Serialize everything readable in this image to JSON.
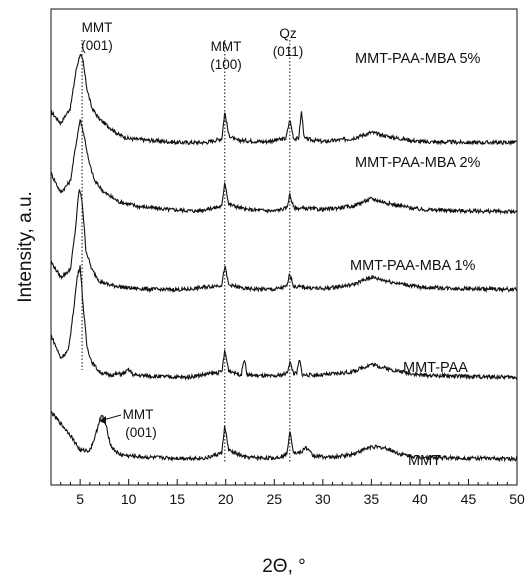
{
  "chart_data": {
    "type": "line",
    "xlabel": "2Θ, °",
    "ylabel": "Intensity, a.u.",
    "xlim": [
      2,
      50
    ],
    "xticks": [
      5,
      10,
      15,
      20,
      25,
      30,
      35,
      40,
      45,
      50
    ],
    "xtick_labels": [
      "5",
      "10",
      "15",
      "20",
      "25",
      "30",
      "35",
      "40",
      "45",
      "50"
    ],
    "y_ticks_shown": false,
    "grid": false,
    "reference_lines": [
      {
        "x": 5.2,
        "style": "dotted"
      },
      {
        "x": 19.9,
        "style": "dotted"
      },
      {
        "x": 26.6,
        "style": "dotted"
      }
    ],
    "annotations": [
      {
        "text": "MMT",
        "x": 6.0,
        "series": "MMT-PAA-MBA 5%"
      },
      {
        "text": "(001)",
        "x": 6.0,
        "series": "MMT-PAA-MBA 5%"
      },
      {
        "text": "MMT",
        "x": 19.9,
        "series": "MMT-PAA-MBA 5%"
      },
      {
        "text": "(100)",
        "x": 19.9,
        "series": "MMT-PAA-MBA 5%"
      },
      {
        "text": "Qz",
        "x": 26.6,
        "series": "MMT-PAA-MBA 5%"
      },
      {
        "text": "(011)",
        "x": 26.6,
        "series": "MMT-PAA-MBA 5%"
      },
      {
        "text": "MMT",
        "x": 9.5,
        "series": "MMT"
      },
      {
        "text": "(001)",
        "x": 9.5,
        "series": "MMT"
      }
    ],
    "series": [
      {
        "name": "MMT-PAA-MBA 5%",
        "baseline": 4.1,
        "x": [
          2,
          3,
          4,
          4.6,
          5.0,
          5.3,
          5.7,
          6.2,
          7,
          8,
          9,
          10,
          12,
          15,
          18,
          19.6,
          19.9,
          20.3,
          21,
          24,
          26.2,
          26.6,
          27.0,
          27.5,
          27.8,
          28.1,
          30,
          33,
          35,
          37,
          40,
          45,
          50
        ],
        "y": [
          0.45,
          0.3,
          0.5,
          1.0,
          1.2,
          1.1,
          0.75,
          0.5,
          0.35,
          0.25,
          0.15,
          0.1,
          0.08,
          0.05,
          0.05,
          0.1,
          0.45,
          0.15,
          0.08,
          0.06,
          0.1,
          0.35,
          0.1,
          0.1,
          0.45,
          0.1,
          0.06,
          0.1,
          0.18,
          0.12,
          0.06,
          0.05,
          0.05
        ]
      },
      {
        "name": "MMT-PAA-MBA 2%",
        "baseline": 3.2,
        "x": [
          2,
          3,
          4,
          4.6,
          5.0,
          5.4,
          5.9,
          6.5,
          7.5,
          9,
          11,
          14,
          17,
          19.6,
          19.9,
          20.3,
          22,
          25,
          26.3,
          26.6,
          27.0,
          30,
          33,
          35,
          37,
          40,
          45,
          50
        ],
        "y": [
          0.55,
          0.3,
          0.45,
          0.95,
          1.25,
          1.05,
          0.7,
          0.45,
          0.3,
          0.18,
          0.12,
          0.08,
          0.06,
          0.12,
          0.45,
          0.15,
          0.08,
          0.06,
          0.1,
          0.28,
          0.1,
          0.08,
          0.12,
          0.22,
          0.15,
          0.08,
          0.06,
          0.05
        ]
      },
      {
        "name": "MMT-PAA-MBA 1%",
        "baseline": 2.2,
        "x": [
          2,
          3,
          4,
          4.5,
          4.9,
          5.2,
          5.6,
          6.2,
          7,
          8,
          10,
          13,
          16,
          19.6,
          19.9,
          20.3,
          22,
          25,
          26.3,
          26.6,
          27.0,
          30,
          33,
          35,
          37,
          40,
          45,
          50
        ],
        "y": [
          0.4,
          0.2,
          0.3,
          0.8,
          1.35,
          1.2,
          0.55,
          0.3,
          0.15,
          0.1,
          0.06,
          0.04,
          0.04,
          0.1,
          0.35,
          0.1,
          0.05,
          0.04,
          0.08,
          0.25,
          0.08,
          0.05,
          0.1,
          0.2,
          0.14,
          0.07,
          0.05,
          0.04
        ]
      },
      {
        "name": "MMT-PAA",
        "baseline": 1.05,
        "x": [
          2,
          3,
          3.8,
          4.3,
          4.7,
          5.0,
          5.3,
          5.7,
          6.2,
          7,
          8,
          9.5,
          10,
          10.5,
          13,
          16,
          19.6,
          19.9,
          20.3,
          21.6,
          21.9,
          22.2,
          25,
          26.3,
          26.6,
          27.0,
          27.3,
          27.6,
          27.9,
          30,
          33,
          35,
          37,
          40,
          45,
          50
        ],
        "y": [
          0.6,
          0.3,
          0.4,
          0.9,
          1.35,
          1.5,
          1.0,
          0.45,
          0.25,
          0.12,
          0.08,
          0.1,
          0.15,
          0.08,
          0.06,
          0.05,
          0.12,
          0.4,
          0.14,
          0.08,
          0.3,
          0.08,
          0.06,
          0.1,
          0.25,
          0.1,
          0.1,
          0.28,
          0.08,
          0.08,
          0.12,
          0.22,
          0.15,
          0.08,
          0.06,
          0.05
        ]
      },
      {
        "name": "MMT",
        "baseline": 0.0,
        "x": [
          2,
          3,
          4,
          5,
          6,
          6.6,
          7.0,
          7.3,
          7.7,
          8.2,
          9,
          10,
          12,
          15,
          18,
          19.6,
          19.9,
          20.3,
          22,
          25,
          26.3,
          26.6,
          27.0,
          27.8,
          28.2,
          29,
          31,
          33,
          35,
          36.5,
          38,
          40,
          45,
          50
        ],
        "y": [
          0.65,
          0.5,
          0.35,
          0.15,
          0.15,
          0.35,
          0.55,
          0.6,
          0.45,
          0.2,
          0.1,
          0.08,
          0.06,
          0.05,
          0.05,
          0.12,
          0.48,
          0.15,
          0.06,
          0.05,
          0.1,
          0.42,
          0.12,
          0.12,
          0.2,
          0.08,
          0.06,
          0.1,
          0.2,
          0.18,
          0.1,
          0.06,
          0.05,
          0.04
        ]
      }
    ]
  }
}
